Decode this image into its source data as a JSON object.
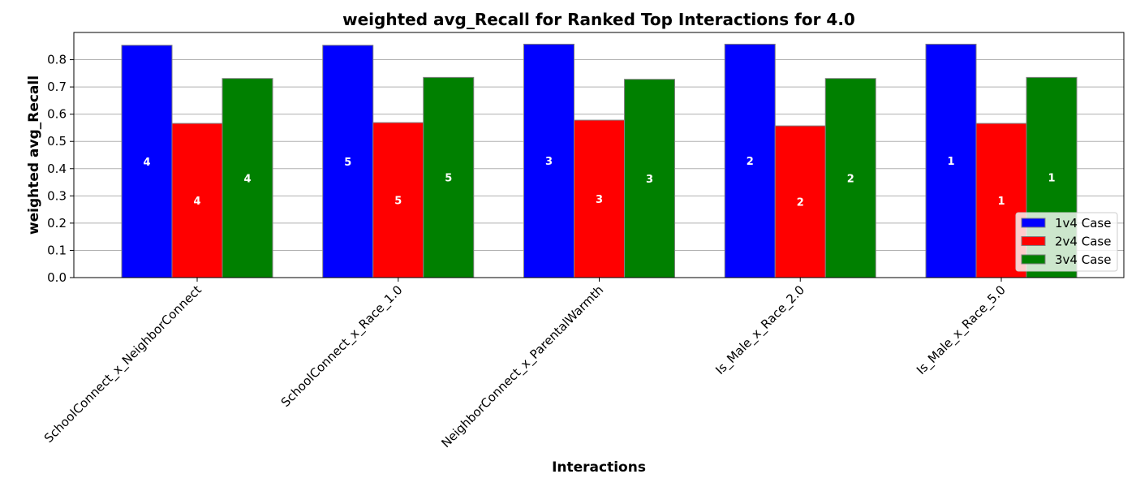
{
  "chart_data": {
    "type": "bar",
    "title": "weighted avg_Recall for Ranked Top Interactions for 4.0",
    "xlabel": "Interactions",
    "ylabel": "weighted avg_Recall",
    "ylim": [
      0,
      0.9
    ],
    "yticks": [
      0.0,
      0.1,
      0.2,
      0.3,
      0.4,
      0.5,
      0.6,
      0.7,
      0.8
    ],
    "ytick_labels": [
      "0.0",
      "0.1",
      "0.2",
      "0.3",
      "0.4",
      "0.5",
      "0.6",
      "0.7",
      "0.8"
    ],
    "grid": "horizontal",
    "legend_position": "lower-right",
    "categories": [
      "SchoolConnect_x_NeighborConnect",
      "SchoolConnect_x_Race_1.0",
      "NeighborConnect_x_ParentalWarmth",
      "Is_Male_x_Race_2.0",
      "Is_Male_x_Race_5.0"
    ],
    "series": [
      {
        "name": "1v4 Case",
        "color": "#0000ff",
        "values": [
          0.853,
          0.853,
          0.857,
          0.857,
          0.857
        ],
        "labels": [
          "4",
          "5",
          "3",
          "2",
          "1"
        ]
      },
      {
        "name": "2v4 Case",
        "color": "#ff0000",
        "values": [
          0.566,
          0.569,
          0.578,
          0.557,
          0.566
        ],
        "labels": [
          "4",
          "5",
          "3",
          "2",
          "1"
        ]
      },
      {
        "name": "3v4 Case",
        "color": "#008000",
        "values": [
          0.731,
          0.735,
          0.728,
          0.731,
          0.735
        ],
        "labels": [
          "4",
          "5",
          "3",
          "2",
          "1"
        ]
      }
    ]
  }
}
